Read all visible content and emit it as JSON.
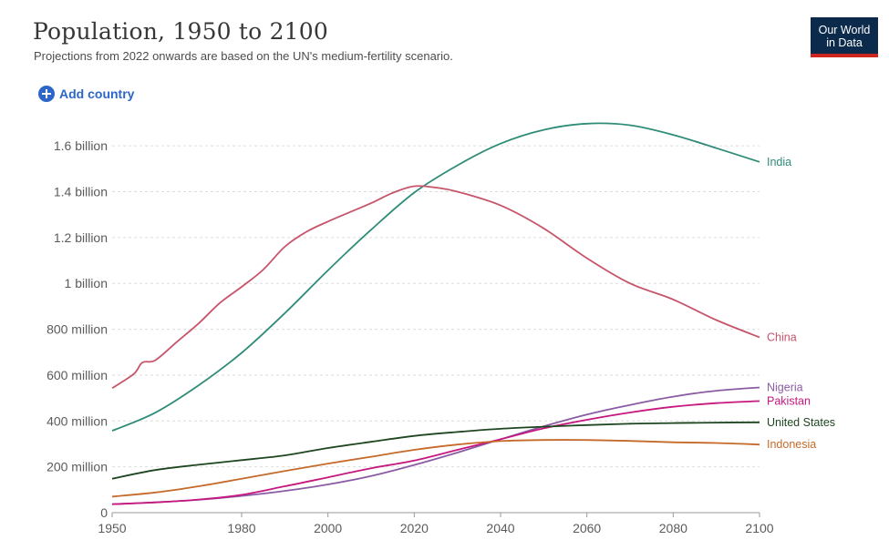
{
  "header": {
    "title": "Population, 1950 to 2100",
    "subtitle": "Projections from 2022 onwards are based on the UN's medium-fertility scenario.",
    "logo_line1": "Our World",
    "logo_line2": "in Data"
  },
  "controls": {
    "add_country_label": "Add country"
  },
  "colors": {
    "logo_bg": "#0c2a4b",
    "logo_accent": "#ce261e",
    "link": "#2c66c9"
  },
  "chart_data": {
    "type": "line",
    "title": "Population, 1950 to 2100",
    "subtitle": "Projections from 2022 onwards are based on the UN's medium-fertility scenario.",
    "xlim": [
      1950,
      2100
    ],
    "ylim": [
      0,
      1700000000
    ],
    "x_ticks": [
      1950,
      1980,
      2000,
      2020,
      2040,
      2060,
      2080,
      2100
    ],
    "y_ticks": [
      {
        "value": 0,
        "label": "0"
      },
      {
        "value": 200000000,
        "label": "200 million"
      },
      {
        "value": 400000000,
        "label": "400 million"
      },
      {
        "value": 600000000,
        "label": "600 million"
      },
      {
        "value": 800000000,
        "label": "800 million"
      },
      {
        "value": 1000000000,
        "label": "1 billion"
      },
      {
        "value": 1200000000,
        "label": "1.2 billion"
      },
      {
        "value": 1400000000,
        "label": "1.4 billion"
      },
      {
        "value": 1600000000,
        "label": "1.6 billion"
      }
    ],
    "grid": true,
    "legend": "inline-right",
    "series": [
      {
        "name": "India",
        "color": "#2e8c78",
        "x": [
          1950,
          1960,
          1970,
          1980,
          1990,
          2000,
          2010,
          2020,
          2030,
          2040,
          2050,
          2060,
          2070,
          2080,
          2090,
          2100
        ],
        "y": [
          357000000,
          436000000,
          555000000,
          697000000,
          870000000,
          1057000000,
          1234000000,
          1396000000,
          1515000000,
          1610000000,
          1670000000,
          1697000000,
          1690000000,
          1648000000,
          1590000000,
          1530000000
        ]
      },
      {
        "name": "China",
        "color": "#c7546a",
        "x": [
          1950,
          1955,
          1957,
          1960,
          1965,
          1970,
          1975,
          1980,
          1985,
          1990,
          1995,
          2000,
          2005,
          2010,
          2015,
          2020,
          2025,
          2030,
          2040,
          2050,
          2060,
          2070,
          2080,
          2090,
          2100
        ],
        "y": [
          543000000,
          605000000,
          655000000,
          665000000,
          745000000,
          825000000,
          915000000,
          985000000,
          1060000000,
          1160000000,
          1225000000,
          1270000000,
          1310000000,
          1350000000,
          1395000000,
          1424000000,
          1418000000,
          1400000000,
          1340000000,
          1240000000,
          1110000000,
          1000000000,
          930000000,
          840000000,
          765000000
        ]
      },
      {
        "name": "Nigeria",
        "color": "#8a5ca4",
        "x": [
          1950,
          1960,
          1970,
          1980,
          1990,
          2000,
          2010,
          2020,
          2030,
          2040,
          2050,
          2060,
          2070,
          2080,
          2090,
          2100
        ],
        "y": [
          37000000,
          45000000,
          56000000,
          73000000,
          95000000,
          123000000,
          160000000,
          208000000,
          262000000,
          320000000,
          377000000,
          428000000,
          470000000,
          506000000,
          532000000,
          546000000
        ]
      },
      {
        "name": "Pakistan",
        "color": "#c6187f",
        "x": [
          1950,
          1960,
          1970,
          1980,
          1990,
          2000,
          2010,
          2020,
          2030,
          2040,
          2050,
          2060,
          2070,
          2080,
          2090,
          2100
        ],
        "y": [
          37000000,
          45000000,
          57000000,
          78000000,
          115000000,
          154000000,
          194000000,
          227000000,
          274000000,
          320000000,
          368000000,
          405000000,
          437000000,
          462000000,
          478000000,
          487000000
        ]
      },
      {
        "name": "United States",
        "color": "#1e4620",
        "x": [
          1950,
          1960,
          1970,
          1980,
          1990,
          2000,
          2010,
          2020,
          2030,
          2040,
          2050,
          2060,
          2070,
          2080,
          2090,
          2100
        ],
        "y": [
          148000000,
          186000000,
          209000000,
          229000000,
          250000000,
          282000000,
          309000000,
          335000000,
          352000000,
          366000000,
          375000000,
          382000000,
          388000000,
          391000000,
          393000000,
          394000000
        ]
      },
      {
        "name": "Indonesia",
        "color": "#c56a2a",
        "x": [
          1950,
          1960,
          1970,
          1980,
          1990,
          2000,
          2010,
          2020,
          2030,
          2040,
          2050,
          2060,
          2070,
          2080,
          2090,
          2100
        ],
        "y": [
          70000000,
          88000000,
          115000000,
          148000000,
          182000000,
          214000000,
          244000000,
          274000000,
          297000000,
          312000000,
          317000000,
          317000000,
          313000000,
          307000000,
          304000000,
          297000000
        ]
      }
    ],
    "labels": [
      {
        "name": "India",
        "color": "#2e8c78"
      },
      {
        "name": "China",
        "color": "#c7546a"
      },
      {
        "name": "Nigeria",
        "color": "#8a5ca4"
      },
      {
        "name": "Pakistan",
        "color": "#c6187f"
      },
      {
        "name": "United States",
        "color": "#1e4620"
      },
      {
        "name": "Indonesia",
        "color": "#c56a2a"
      }
    ]
  }
}
